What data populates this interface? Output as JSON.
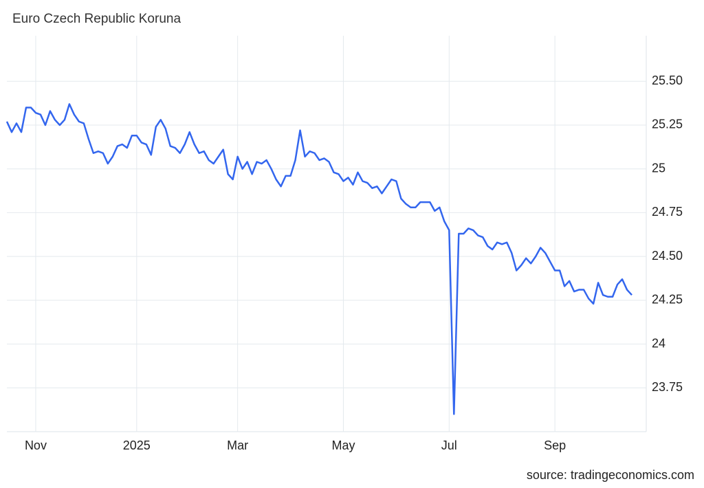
{
  "chart_data": {
    "type": "line",
    "title": "Euro Czech Republic Koruna",
    "source": "source: tradingeconomics.com",
    "series": [
      {
        "name": "Euro Czech Republic Koruna",
        "color": "#3366ee",
        "values": [
          25.27,
          25.21,
          25.26,
          25.21,
          25.35,
          25.35,
          25.32,
          25.31,
          25.25,
          25.33,
          25.28,
          25.25,
          25.28,
          25.37,
          25.31,
          25.27,
          25.26,
          25.17,
          25.09,
          25.1,
          25.09,
          25.03,
          25.07,
          25.13,
          25.14,
          25.12,
          25.19,
          25.19,
          25.15,
          25.14,
          25.08,
          25.24,
          25.28,
          25.23,
          25.13,
          25.12,
          25.09,
          25.14,
          25.21,
          25.14,
          25.09,
          25.1,
          25.05,
          25.03,
          25.07,
          25.11,
          24.97,
          24.94,
          25.07,
          25.0,
          25.04,
          24.97,
          25.04,
          25.03,
          25.05,
          25.0,
          24.94,
          24.9,
          24.96,
          24.96,
          25.05,
          25.22,
          25.07,
          25.1,
          25.09,
          25.05,
          25.06,
          25.04,
          24.98,
          24.97,
          24.93,
          24.95,
          24.91,
          24.98,
          24.93,
          24.92,
          24.89,
          24.9,
          24.86,
          24.9,
          24.94,
          24.93,
          24.83,
          24.8,
          24.78,
          24.78,
          24.81,
          24.81,
          24.81,
          24.76,
          24.78,
          24.7,
          24.65,
          23.6,
          24.63,
          24.63,
          24.66,
          24.65,
          24.62,
          24.61,
          24.56,
          24.54,
          24.58,
          24.57,
          24.58,
          24.52,
          24.42,
          24.45,
          24.49,
          24.46,
          24.5,
          24.55,
          24.52,
          24.47,
          24.42,
          24.42,
          24.33,
          24.36,
          24.3,
          24.31,
          24.31,
          24.26,
          24.23,
          24.35,
          24.28,
          24.27,
          24.27,
          24.34,
          24.37,
          24.31,
          24.28
        ]
      }
    ],
    "xlim": [
      0,
      133
    ],
    "xticks": [
      {
        "value": 6,
        "label": "Nov"
      },
      {
        "value": 27,
        "label": "2025"
      },
      {
        "value": 48,
        "label": "Mar"
      },
      {
        "value": 70,
        "label": "May"
      },
      {
        "value": 92,
        "label": "Jul"
      },
      {
        "value": 114,
        "label": "Sep"
      }
    ],
    "ylim": [
      23.5,
      25.76
    ],
    "yticks": [
      23.75,
      24,
      24.25,
      {
        "value": 24.5,
        "label": "24.50"
      },
      24.75,
      25,
      25.25,
      {
        "value": 25.5,
        "label": "25.50"
      }
    ],
    "grid": true
  }
}
